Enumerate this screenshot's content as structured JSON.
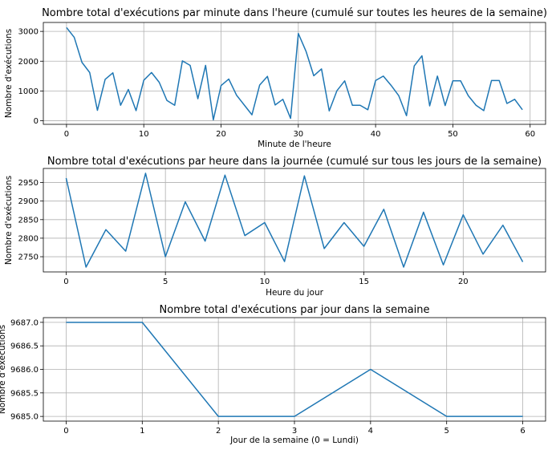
{
  "chart_data": [
    {
      "type": "line",
      "title": "Nombre total d'exécutions par minute dans l'heure (cumulé sur toutes les heures de la semaine)",
      "xlabel": "Minute de l'heure",
      "ylabel": "Nombre d'exécutions",
      "xlim": [
        -3,
        62
      ],
      "ylim": [
        -120,
        3300
      ],
      "xticks": [
        0,
        10,
        20,
        30,
        40,
        50,
        60
      ],
      "yticks": [
        0,
        1000,
        2000,
        3000
      ],
      "grid": true,
      "series": [
        {
          "color": "#1f77b4",
          "x": [
            0,
            1,
            2,
            3,
            4,
            5,
            6,
            7,
            8,
            9,
            10,
            11,
            12,
            13,
            14,
            15,
            16,
            17,
            18,
            19,
            20,
            21,
            22,
            23,
            24,
            25,
            26,
            27,
            28,
            29,
            30,
            31,
            32,
            33,
            34,
            35,
            36,
            37,
            38,
            39,
            40,
            41,
            42,
            43,
            44,
            45,
            46,
            47,
            48,
            49,
            50,
            51,
            52,
            53,
            54,
            55,
            56,
            57,
            58,
            59
          ],
          "values": [
            3130,
            2800,
            1960,
            1620,
            350,
            1390,
            1610,
            520,
            1050,
            340,
            1360,
            1620,
            1290,
            680,
            520,
            2010,
            1860,
            740,
            1860,
            30,
            1180,
            1400,
            860,
            530,
            200,
            1200,
            1490,
            530,
            720,
            80,
            2930,
            2330,
            1510,
            1740,
            330,
            1010,
            1340,
            520,
            520,
            370,
            1350,
            1500,
            1190,
            840,
            170,
            1840,
            2180,
            500,
            1500,
            510,
            1340,
            1340,
            840,
            520,
            340,
            1350,
            1350,
            580,
            720,
            370
          ]
        }
      ]
    },
    {
      "type": "line",
      "title": "Nombre total d'exécutions par heure dans la journée (cumulé sur tous les jours de la semaine)",
      "xlabel": "Heure du jour",
      "ylabel": "Nombre d'exécutions",
      "xlim": [
        -1.15,
        24.15
      ],
      "ylim": [
        2709,
        2988
      ],
      "xticks": [
        0,
        5,
        10,
        15,
        20
      ],
      "yticks": [
        2750,
        2800,
        2850,
        2900,
        2950
      ],
      "grid": true,
      "series": [
        {
          "color": "#1f77b4",
          "x": [
            0,
            1,
            2,
            3,
            4,
            5,
            6,
            7,
            8,
            9,
            10,
            11,
            12,
            13,
            14,
            15,
            16,
            17,
            18,
            19,
            20,
            21,
            22,
            23
          ],
          "values": [
            2962,
            2722,
            2823,
            2765,
            2975,
            2750,
            2898,
            2792,
            2970,
            2807,
            2842,
            2737,
            2968,
            2772,
            2842,
            2778,
            2878,
            2722,
            2870,
            2728,
            2863,
            2757,
            2835,
            2736
          ]
        }
      ]
    },
    {
      "type": "line",
      "title": "Nombre total d'exécutions par jour dans la semaine",
      "xlabel": "Jour de la semaine (0 = Lundi)",
      "ylabel": "Nombre d'exécutions",
      "xlim": [
        -0.3,
        6.3
      ],
      "ylim": [
        9684.9,
        9687.1
      ],
      "xticks": [
        0,
        1,
        2,
        3,
        4,
        5,
        6
      ],
      "yticks": [
        9685.0,
        9685.5,
        9686.0,
        9686.5,
        9687.0
      ],
      "ytick_decimals": 1,
      "grid": true,
      "series": [
        {
          "color": "#1f77b4",
          "x": [
            0,
            1,
            2,
            3,
            4,
            5,
            6
          ],
          "values": [
            9687,
            9687,
            9685,
            9685,
            9686,
            9685,
            9685
          ]
        }
      ]
    }
  ]
}
